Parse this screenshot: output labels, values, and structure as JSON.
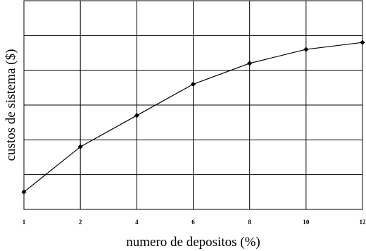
{
  "chart_data": {
    "type": "line",
    "title": "",
    "xlabel": "numero de depositos (%)",
    "ylabel": "custos de sistema ($)",
    "x_categories": [
      "1",
      "2",
      "4",
      "6",
      "8",
      "10",
      "12"
    ],
    "series": [
      {
        "values": [
          0.5,
          1.8,
          2.7,
          3.6,
          4.2,
          4.6,
          4.8
        ],
        "marker": "diamond",
        "color": "#000000"
      }
    ],
    "ylim": [
      0,
      6
    ],
    "y_tick_labels_shown": false,
    "grid": true,
    "legend": "none"
  }
}
